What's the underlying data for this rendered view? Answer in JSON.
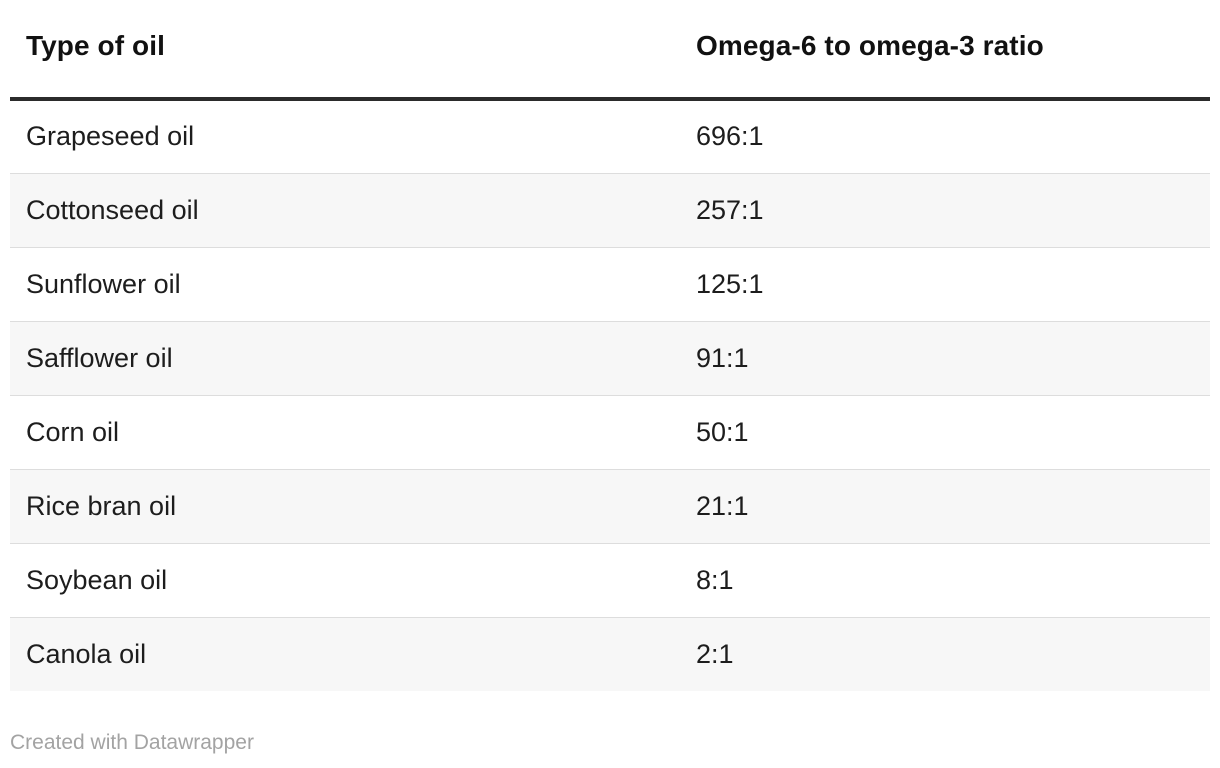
{
  "chart_data": {
    "type": "table",
    "columns": [
      "Type of oil",
      "Omega-6 to omega-3 ratio"
    ],
    "rows": [
      [
        "Grapeseed oil",
        "696:1"
      ],
      [
        "Cottonseed oil",
        "257:1"
      ],
      [
        "Sunflower oil",
        "125:1"
      ],
      [
        "Safflower oil",
        "91:1"
      ],
      [
        "Corn oil",
        "50:1"
      ],
      [
        "Rice bran oil",
        "21:1"
      ],
      [
        "Soybean oil",
        "8:1"
      ],
      [
        "Canola oil",
        "2:1"
      ]
    ],
    "title": ""
  },
  "footer": {
    "credit": "Created with Datawrapper"
  },
  "colors": {
    "header_rule": "#2b2b2b",
    "row_alt_bg": "#f7f7f7",
    "row_divider": "#dddddd",
    "credit_text": "#a3a3a3"
  }
}
